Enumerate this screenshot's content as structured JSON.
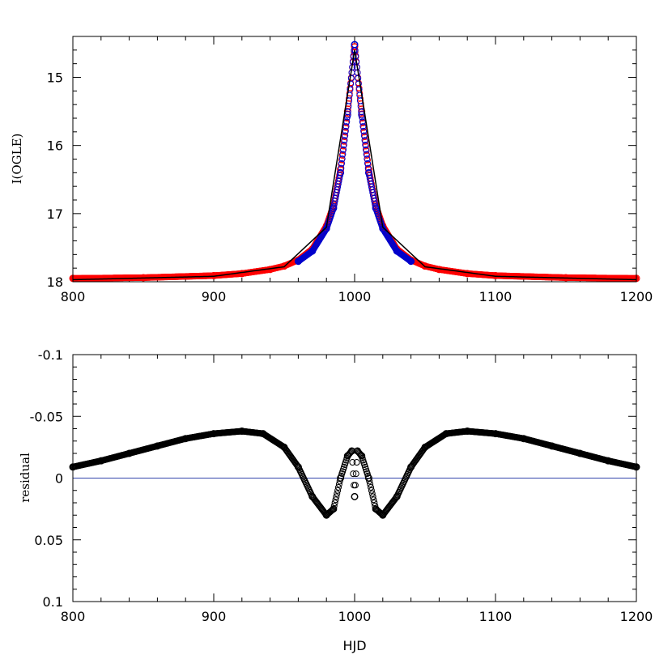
{
  "chart_data": [
    {
      "type": "scatter",
      "ylabel": "I(OGLE)",
      "xlabel": "",
      "xlim": [
        800,
        1200
      ],
      "ylim": [
        18,
        14.4
      ],
      "y_inverted": true,
      "x_ticks": [
        800,
        900,
        1000,
        1100,
        1200
      ],
      "y_ticks": [
        15,
        16,
        17,
        18
      ],
      "grid": false,
      "series": [
        {
          "color": "#ff0000",
          "marker": "open-circle",
          "x": [
            800,
            850,
            900,
            920,
            940,
            950,
            960,
            970,
            980,
            985,
            990,
            995,
            1000,
            1005,
            1010,
            1015,
            1020,
            1030,
            1040,
            1050,
            1060,
            1080,
            1100,
            1150,
            1200
          ],
          "y": [
            17.95,
            17.94,
            17.91,
            17.88,
            17.82,
            17.77,
            17.68,
            17.52,
            17.18,
            16.88,
            16.35,
            15.5,
            14.55,
            15.5,
            16.35,
            16.88,
            17.18,
            17.52,
            17.68,
            17.77,
            17.82,
            17.88,
            17.91,
            17.94,
            17.95
          ]
        },
        {
          "color": "#0000cc",
          "marker": "open-circle",
          "x": [
            960,
            970,
            980,
            985,
            990,
            995,
            1000,
            1005,
            1010,
            1015,
            1020,
            1030,
            1040
          ],
          "y": [
            17.7,
            17.55,
            17.22,
            16.92,
            16.4,
            15.55,
            14.52,
            15.55,
            16.4,
            16.92,
            17.22,
            17.55,
            17.7
          ]
        },
        {
          "color": "#000000",
          "marker": "line",
          "x": [
            800,
            900,
            950,
            980,
            1000,
            1020,
            1050,
            1100,
            1200
          ],
          "y": [
            17.97,
            17.92,
            17.78,
            17.2,
            14.6,
            17.2,
            17.78,
            17.92,
            17.97
          ]
        }
      ]
    },
    {
      "type": "scatter",
      "xlabel": "HJD",
      "ylabel": "residual",
      "xlim": [
        800,
        1200
      ],
      "ylim": [
        0.1,
        -0.1
      ],
      "y_inverted": true,
      "x_ticks": [
        800,
        900,
        1000,
        1100,
        1200
      ],
      "y_ticks": [
        -0.1,
        -0.05,
        0,
        0.05,
        0.1
      ],
      "y_tick_labels": [
        "-0.1",
        "-0.05",
        "0",
        "0.05",
        "0.1"
      ],
      "reference_line": {
        "y": 0,
        "color": "#3344aa"
      },
      "grid": false,
      "series": [
        {
          "color": "#000000",
          "marker": "open-circle",
          "x": [
            800,
            820,
            840,
            860,
            880,
            900,
            920,
            935,
            950,
            960,
            970,
            980,
            985,
            990,
            995,
            998,
            1000,
            1002,
            1005,
            1010,
            1015,
            1020,
            1030,
            1040,
            1050,
            1065,
            1080,
            1100,
            1120,
            1140,
            1160,
            1180,
            1200
          ],
          "y": [
            -0.009,
            -0.014,
            -0.02,
            -0.026,
            -0.032,
            -0.036,
            -0.038,
            -0.036,
            -0.025,
            -0.009,
            0.015,
            0.03,
            0.025,
            0.0,
            -0.018,
            -0.022,
            0.015,
            -0.022,
            -0.018,
            0.0,
            0.025,
            0.03,
            0.015,
            -0.009,
            -0.025,
            -0.036,
            -0.038,
            -0.036,
            -0.032,
            -0.026,
            -0.02,
            -0.014,
            -0.009
          ]
        }
      ]
    }
  ]
}
